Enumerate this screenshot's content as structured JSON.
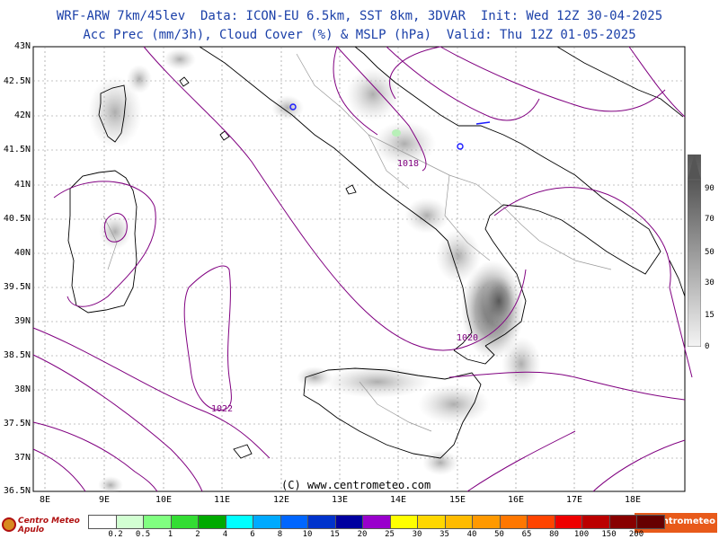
{
  "header": {
    "line1": "WRF-ARW 7km/45lev  Data: ICON-EU 6.5km, SST 8km, 3DVAR  Init: Wed 12Z 30-04-2025",
    "line2": "Acc Prec (mm/3h), Cloud Cover (%) & MSLP (hPa)  Valid: Thu 12Z 01-05-2025"
  },
  "latitude_labels": [
    "43N",
    "42.5N",
    "42N",
    "41.5N",
    "41N",
    "40.5N",
    "40N",
    "39.5N",
    "39N",
    "38.5N",
    "38N",
    "37.5N",
    "37N",
    "36.5N"
  ],
  "longitude_labels": [
    "8E",
    "9E",
    "10E",
    "11E",
    "12E",
    "13E",
    "14E",
    "15E",
    "16E",
    "17E",
    "18E"
  ],
  "isobar_labels": [
    "1018",
    "1020",
    "1022"
  ],
  "copyright": "(C) www.centrometeo.com",
  "cloud_cover_scale": {
    "labels": [
      "90",
      "70",
      "50",
      "30",
      "15",
      "0"
    ]
  },
  "precip_scale": {
    "labels": [
      "0.2",
      "0.5",
      "1",
      "2",
      "4",
      "6",
      "8",
      "10",
      "15",
      "20",
      "25",
      "30",
      "35",
      "40",
      "50",
      "65",
      "80",
      "100",
      "150",
      "200"
    ],
    "colors": [
      "#ffffff",
      "#d2ffd2",
      "#80ff80",
      "#33dd33",
      "#00aa00",
      "#00ffff",
      "#00aaff",
      "#0066ff",
      "#0033cc",
      "#0000a0",
      "#9900cc",
      "#ffff00",
      "#ffd700",
      "#ffbb00",
      "#ff9900",
      "#ff7700",
      "#ff4400",
      "#ee0000",
      "#bb0000",
      "#880000",
      "#660000"
    ]
  },
  "logos": {
    "left": "Centro Meteo Apulo",
    "right": "centrometeo"
  },
  "colors": {
    "title_text": "#1a3fa8",
    "isobar": "#800080",
    "coast": "#000000",
    "border": "#999999"
  }
}
